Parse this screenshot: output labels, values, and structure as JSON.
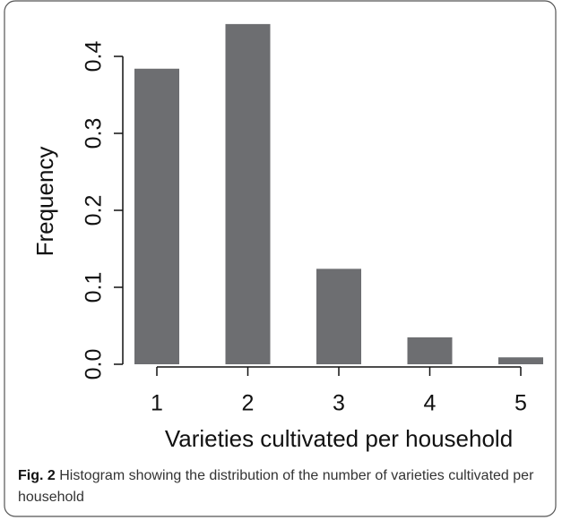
{
  "chart_data": {
    "type": "bar",
    "x_label": "Varieties cultivated per household",
    "y_label": "Frequency",
    "categories": [
      "1",
      "2",
      "3",
      "4",
      "5"
    ],
    "values": [
      0.384,
      0.442,
      0.124,
      0.035,
      0.009
    ],
    "color": "#6d6e71",
    "ylim": [
      0,
      0.45
    ],
    "yticks": [
      {
        "value": 0,
        "label": "0.0"
      },
      0.1,
      0.2,
      0.3,
      0.4
    ]
  },
  "caption": {
    "label": "Fig. 2",
    "text": "Histogram showing the distribution of the number of varieties cultivated per household"
  }
}
